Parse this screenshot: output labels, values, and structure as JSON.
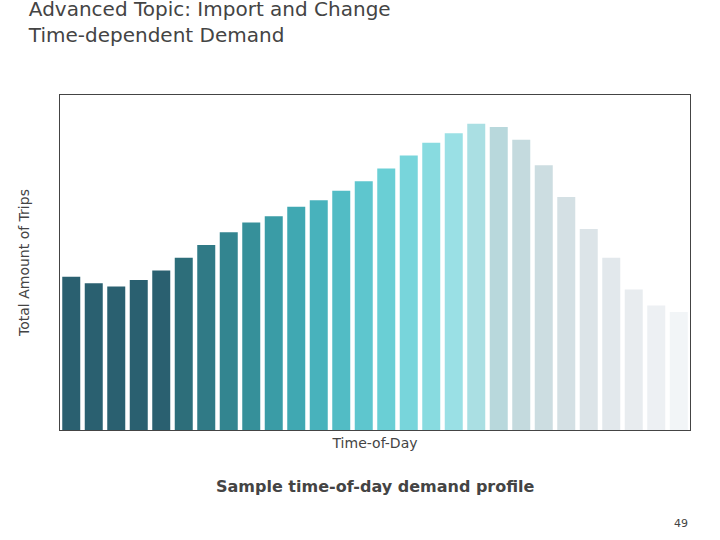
{
  "chart_data": {
    "type": "bar",
    "title": "Advanced Topic: Import and Change",
    "subtitle": "Time-dependent Demand",
    "xlabel": "Time-of-Day",
    "ylabel": "Total Amount of Trips",
    "annotations": [
      "Sample time-of-day demand profile",
      "49"
    ],
    "categories": [
      null,
      null,
      null,
      null,
      null,
      null,
      null,
      null,
      null,
      null,
      null,
      null,
      null,
      null,
      null,
      null,
      null,
      null,
      null,
      null,
      null,
      null,
      null,
      null,
      null,
      null,
      null,
      null
    ],
    "values": [
      48,
      46,
      45,
      47,
      50,
      54,
      58,
      62,
      65,
      67,
      70,
      72,
      75,
      78,
      82,
      86,
      90,
      93,
      96,
      95,
      91,
      83,
      73,
      63,
      54,
      44,
      39,
      37
    ],
    "colors": [
      "#2A6070",
      "#2A6070",
      "#2A6070",
      "#2A6070",
      "#2A6070",
      "#2D6E7A",
      "#307A86",
      "#338590",
      "#36909A",
      "#3A9CA6",
      "#40A8B2",
      "#48B2BC",
      "#52BCC5",
      "#5EC6CE",
      "#6ACFD5",
      "#78D5DB",
      "#88DBE0",
      "#9AE0E5",
      "#AADFE3",
      "#B8D8DC",
      "#C4DADE",
      "#CCDDE1",
      "#D4E0E4",
      "#DCE4E8",
      "#E2E8EC",
      "#E8ECEF",
      "#EDF0F3",
      "#F2F5F7"
    ],
    "ylim": [
      0,
      105
    ],
    "yticks": [],
    "grid": false,
    "tick_labels": false
  }
}
